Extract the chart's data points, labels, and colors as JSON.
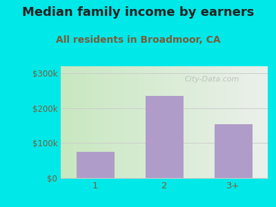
{
  "title": "Median family income by earners",
  "subtitle": "All residents in Broadmoor, CA",
  "categories": [
    "1",
    "2",
    "3+"
  ],
  "values": [
    75000,
    235000,
    155000
  ],
  "bar_color": "#b09cc8",
  "outer_bg": "#00e8e8",
  "yticks": [
    0,
    100000,
    200000,
    300000
  ],
  "ytick_labels": [
    "$0",
    "$100k",
    "$200k",
    "$300k"
  ],
  "ylim": [
    0,
    320000
  ],
  "title_fontsize": 13,
  "subtitle_fontsize": 10,
  "title_color": "#222222",
  "subtitle_color": "#7a5c3a",
  "tick_color": "#7a5c3a",
  "watermark": "City-Data.com",
  "grid_color": "#cccccc",
  "grad_left": "#c8e8c0",
  "grad_right": "#e8e8e8"
}
